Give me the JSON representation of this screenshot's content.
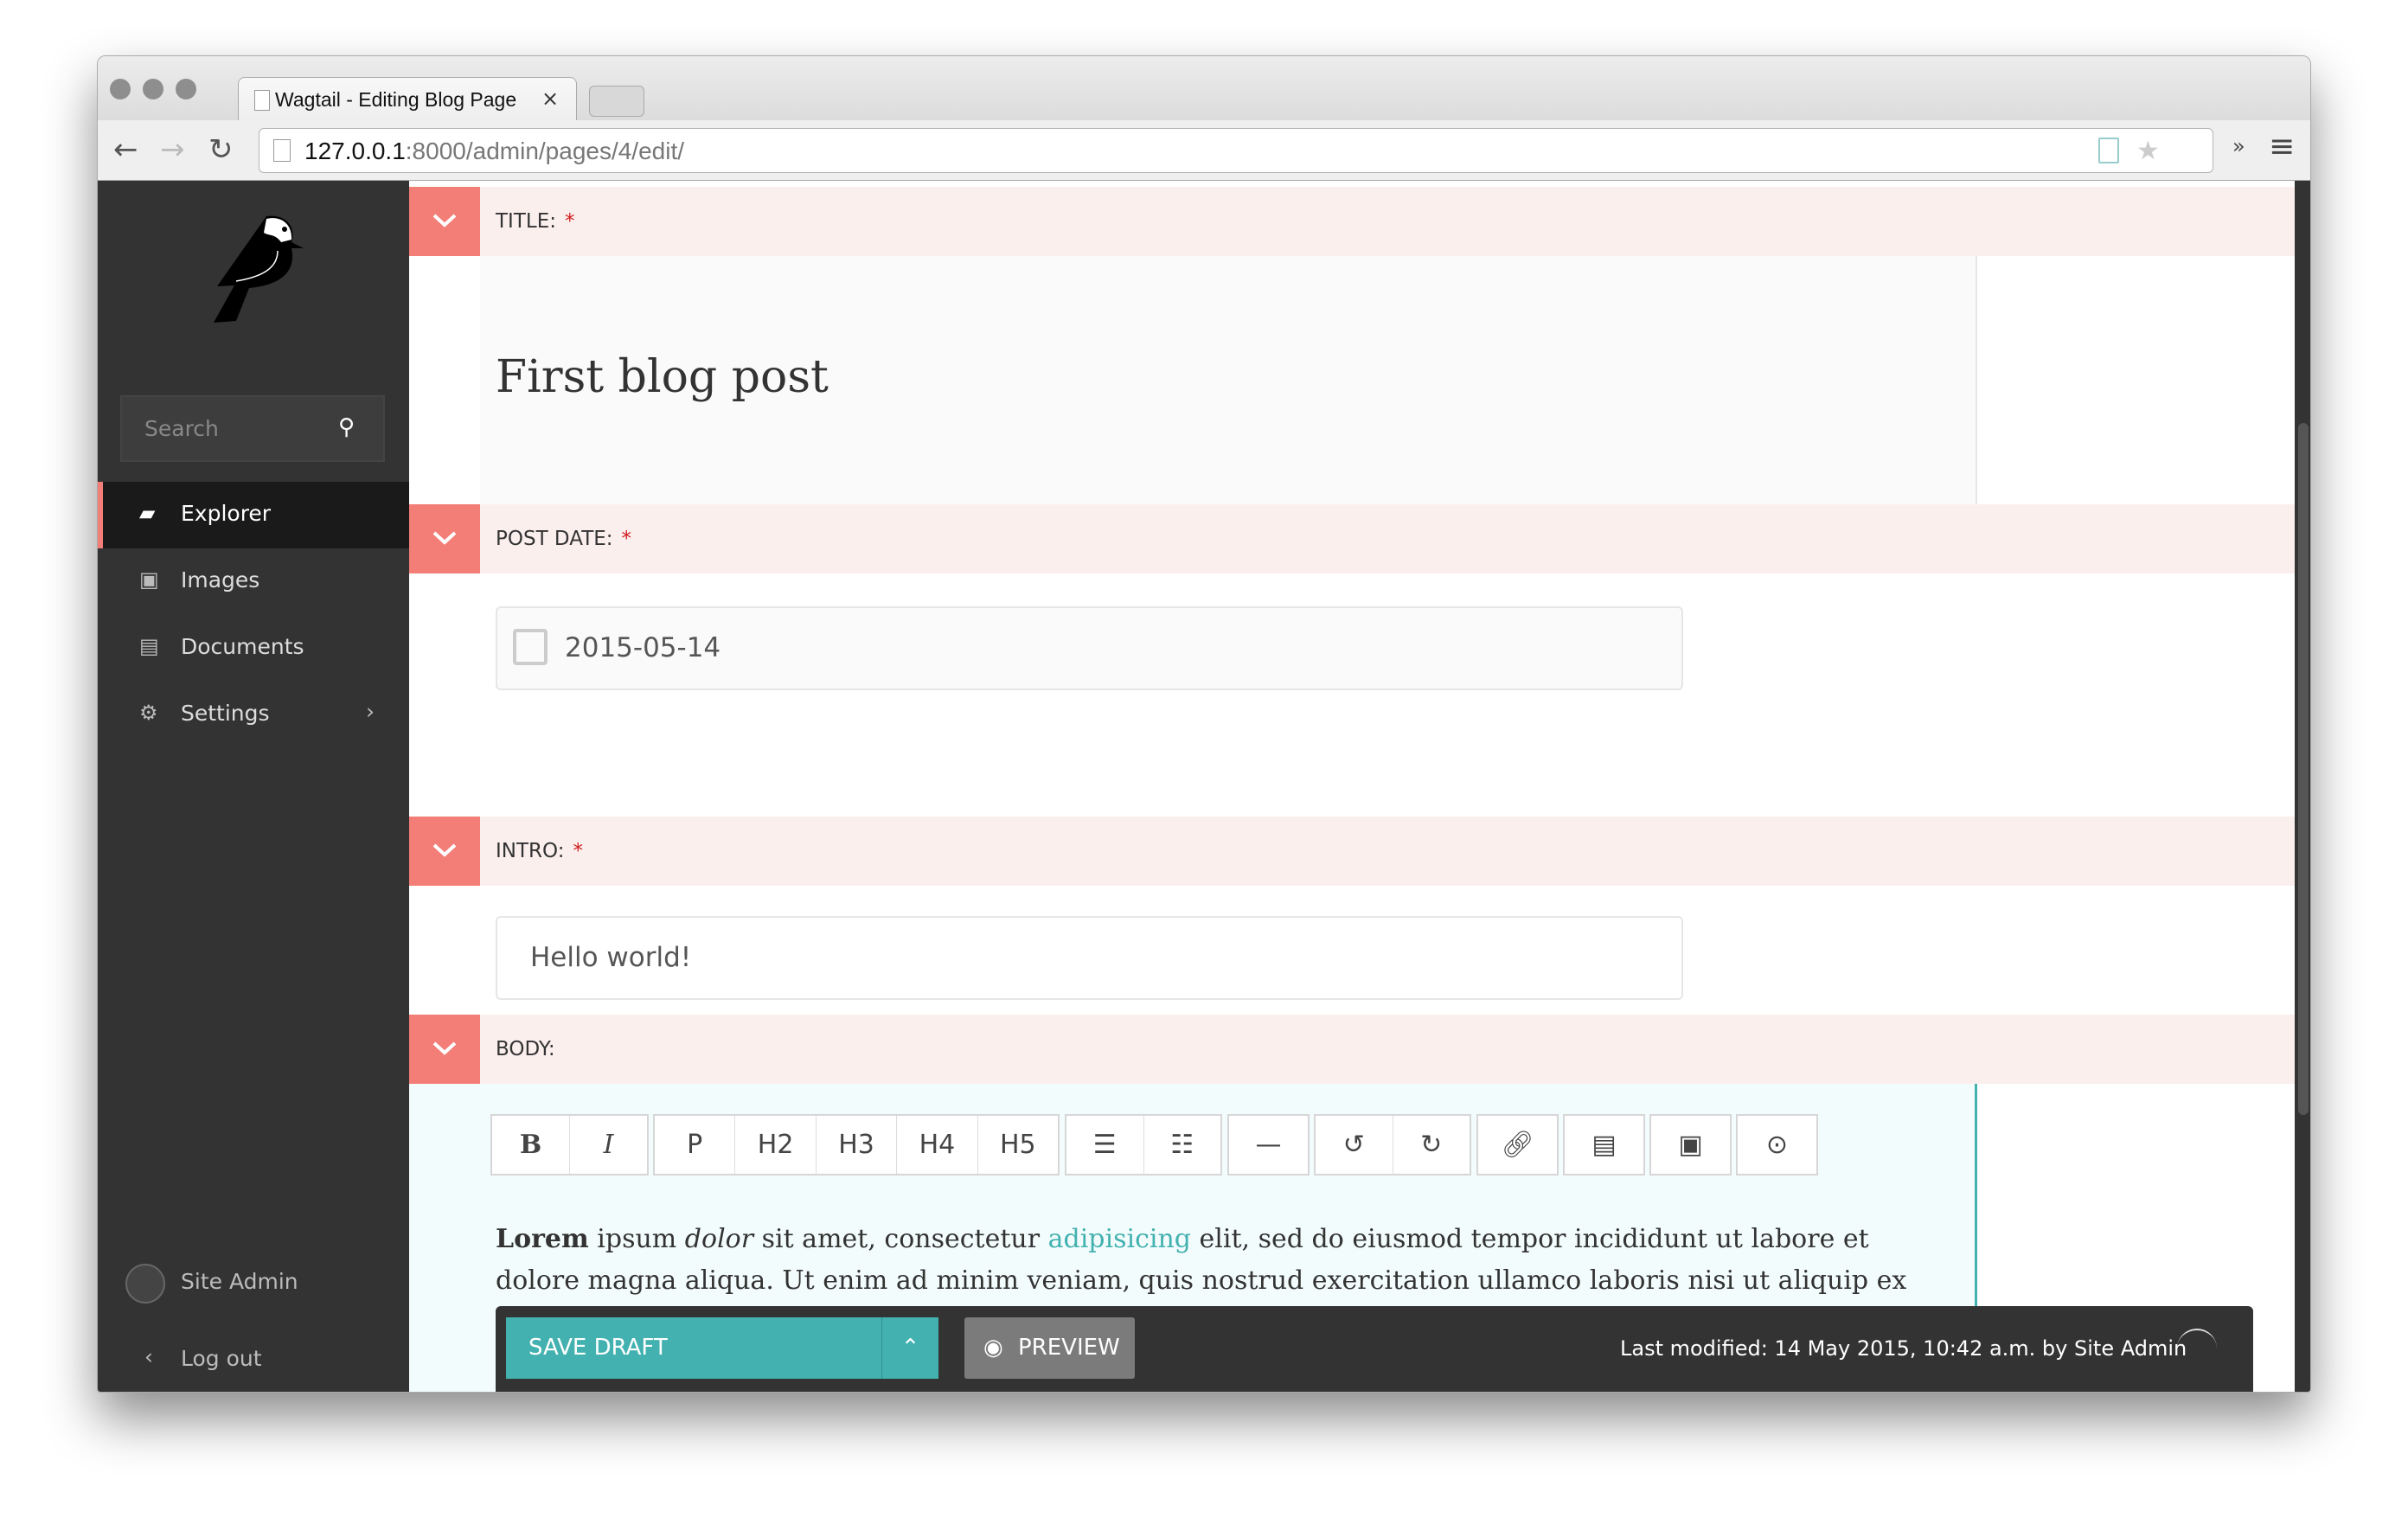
{
  "browser": {
    "tab_title": "Wagtail - Editing Blog Page",
    "url_host": "127.0.0.1",
    "url_path": ":8000/admin/pages/4/edit/"
  },
  "sidebar": {
    "search_placeholder": "Search",
    "items": [
      {
        "label": "Explorer",
        "icon": "folder-open-icon",
        "active": true
      },
      {
        "label": "Images",
        "icon": "image-icon"
      },
      {
        "label": "Documents",
        "icon": "document-icon"
      },
      {
        "label": "Settings",
        "icon": "cogs-icon"
      }
    ],
    "user": "Site Admin",
    "logout": "Log out"
  },
  "fields": {
    "title": {
      "label": "TITLE:",
      "required": "*",
      "value": "First blog post"
    },
    "post_date": {
      "label": "POST DATE:",
      "required": "*",
      "value": "2015-05-14"
    },
    "intro": {
      "label": "INTRO:",
      "required": "*",
      "value": "Hello world!"
    },
    "body": {
      "label": "BODY:",
      "toolbar": [
        "B",
        "I",
        "P",
        "H2",
        "H3",
        "H4",
        "H5",
        "ordered-list-icon",
        "unordered-list-icon",
        "horizontal-rule-icon",
        "undo-icon",
        "redo-icon",
        "link-icon",
        "document-icon",
        "image-icon",
        "media-icon"
      ],
      "text": {
        "bold": "Lorem",
        "t1": " ipsum ",
        "italic": "dolor",
        "t2": " sit amet, consectetur ",
        "link": "adipisicing",
        "t3": " elit, sed do eiusmod  tempor incididunt ut labore et",
        "line2": "dolore magna aliqua. Ut enim ad minim veniam,  quis nostrud exercitation ullamco laboris nisi ut aliquip ex"
      }
    }
  },
  "footer": {
    "save_draft": "SAVE DRAFT",
    "preview": "PREVIEW",
    "last_modified": "Last modified: 14 May 2015, 10:42 a.m. by Site Admin"
  },
  "colors": {
    "accent": "#43b1b0",
    "header_chevron": "#f37e77",
    "sidebar": "#333333"
  }
}
